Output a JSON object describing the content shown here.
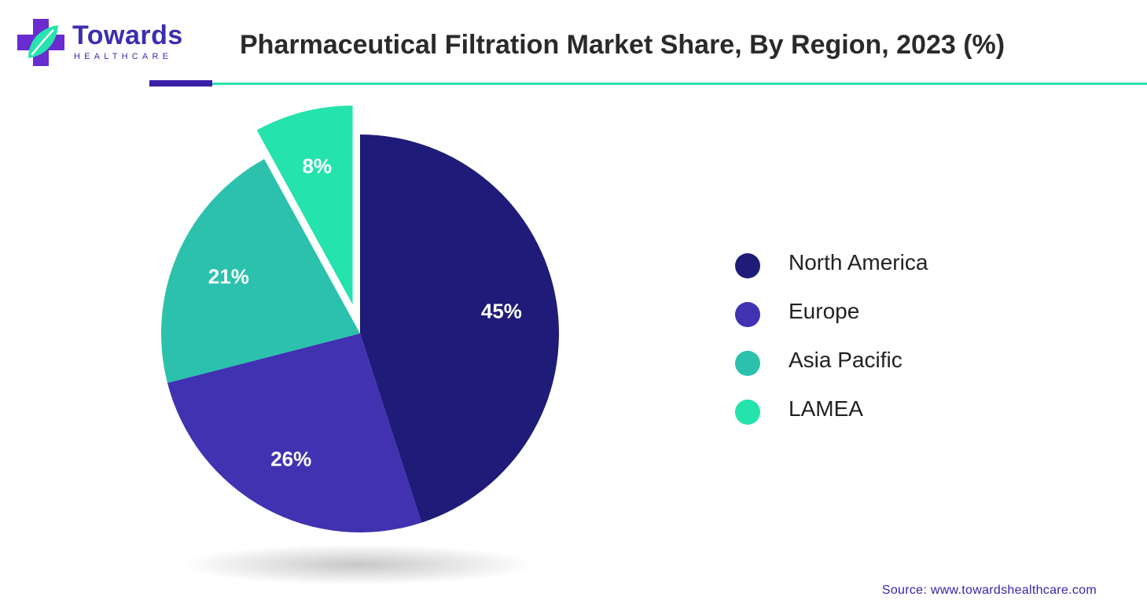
{
  "brand": {
    "name": "Towards",
    "tagline": "HEALTHCARE",
    "colors": {
      "purple": "#3b1fa8",
      "teal": "#26e3ad"
    },
    "icon": "medical-cross-leaf-logo"
  },
  "source": "Source: www.towardshealthcare.com",
  "chart_data": {
    "type": "pie",
    "title": "Pharmaceutical Filtration Market Share, By Region, 2023 (%)",
    "categories": [
      "North America",
      "Europe",
      "Asia Pacific",
      "LAMEA"
    ],
    "values": [
      45,
      26,
      21,
      8
    ],
    "labels": [
      "45%",
      "26%",
      "21%",
      "8%"
    ],
    "colors": [
      "#1e1c78",
      "#4032b1",
      "#2bc1ad",
      "#24e3ad"
    ],
    "exploded": "LAMEA",
    "legend": "right"
  }
}
